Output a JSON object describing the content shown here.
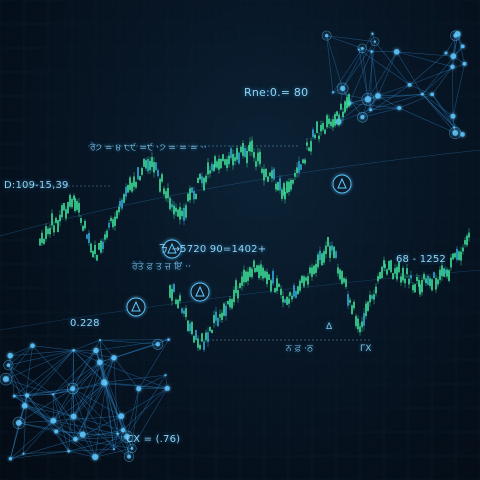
{
  "colors": {
    "background": "#05101c",
    "grid": "#0f2a3e",
    "candle": "#3ddc97",
    "candle_alt": "#2fa8d8",
    "network": "#2a7fc0",
    "node": "#5ec8ff",
    "label": "#8fd3f4"
  },
  "icons": [
    "triangle-node-icon",
    "network-node-icon"
  ],
  "labels": {
    "top_right": "Rne:0.= 80",
    "top_band": "ਰੇ੭ = ੪ ੮੯ =੯ ·੭ = = = ··",
    "left_axis": "D:109-15,39",
    "mid_formula": "ㄋ →5720 90=1402+",
    "mid_small": "ਰੇਤੇ ਫ਼ ਤ ਜ਼ ਇਂ ··",
    "right_value": "68 - 1252",
    "left_value": "0.228",
    "mid_right_a": "Δ",
    "mid_right_b": "ਨ ਫ਼ ·ਠ",
    "mid_right_c": "ΓX",
    "bottom": "CX = (.76)"
  }
}
